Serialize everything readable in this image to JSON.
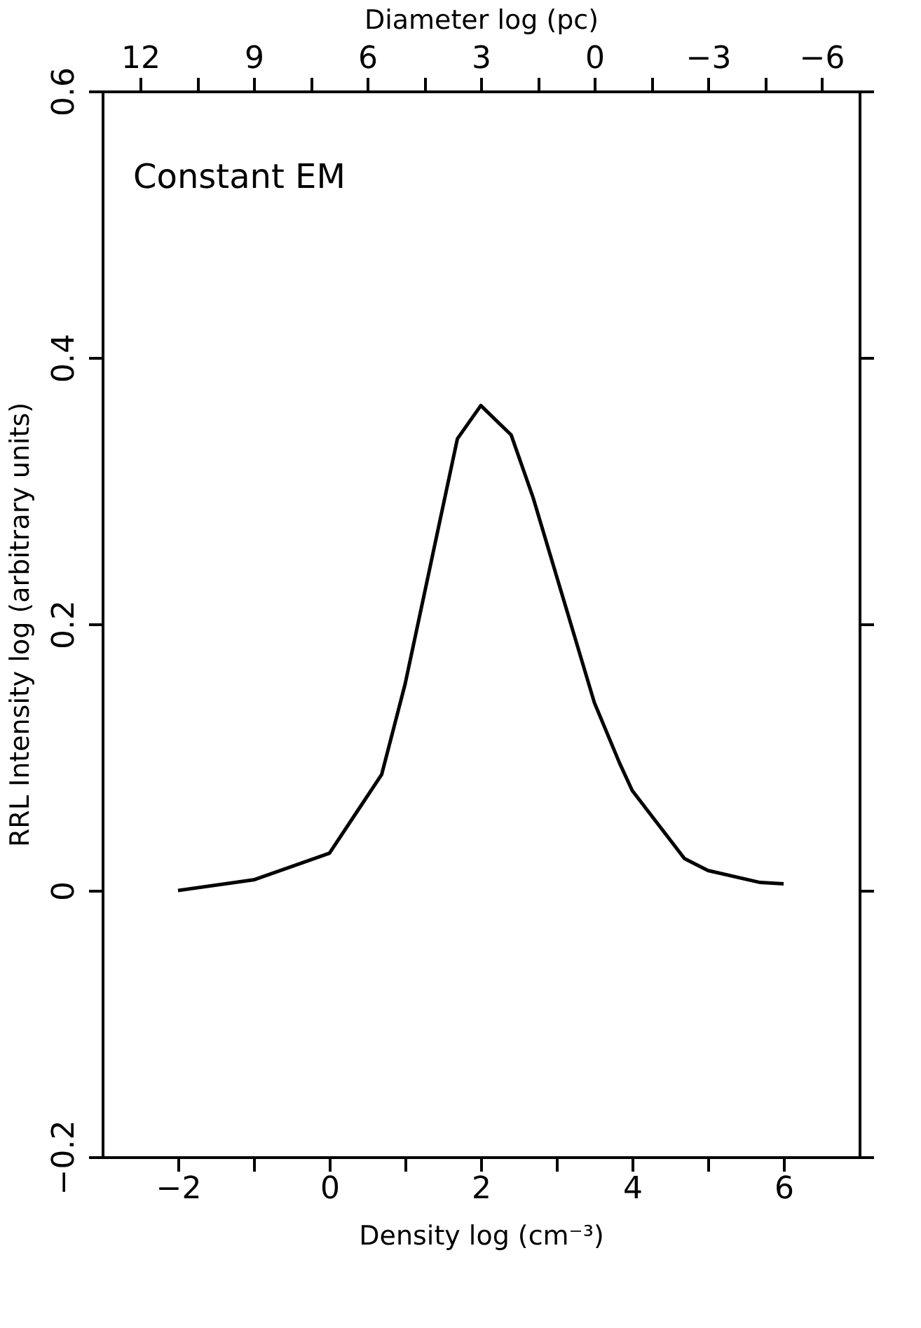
{
  "chart_data": {
    "type": "line",
    "xlabel": "Density log (cm⁻³)",
    "ylabel": "RRL Intensity log (arbitrary units)",
    "x2label": "Diameter log (pc)",
    "annotations": [
      "Constant EM"
    ],
    "series": [
      {
        "color": "#000000",
        "x": [
          -2,
          -1,
          0,
          0.69,
          1.0,
          1.69,
          2.0,
          2.4,
          2.69,
          3.5,
          3.83,
          4.0,
          4.69,
          5.0,
          5.69,
          6.0
        ],
        "values": [
          0.0,
          0.008,
          0.028,
          0.087,
          0.155,
          0.339,
          0.364,
          0.342,
          0.295,
          0.141,
          0.096,
          0.075,
          0.024,
          0.015,
          0.006,
          0.005
        ]
      }
    ],
    "xlim": [
      -3,
      7
    ],
    "xticks": [
      {
        "value": -2,
        "label": "−2"
      },
      {
        "value": -1,
        "label": null
      },
      0,
      {
        "value": 1,
        "label": null
      },
      2,
      {
        "value": 3,
        "label": null
      },
      4,
      {
        "value": 5,
        "label": null
      },
      6
    ],
    "x2lim": [
      13,
      -7
    ],
    "x2ticks": [
      12,
      {
        "value": 10.5,
        "label": null
      },
      9,
      {
        "value": 7.5,
        "label": null
      },
      6,
      {
        "value": 4.5,
        "label": null
      },
      3,
      {
        "value": 1.5,
        "label": null
      },
      0,
      {
        "value": -1.5,
        "label": null
      },
      {
        "value": -3,
        "label": "−3"
      },
      {
        "value": -4.5,
        "label": null
      },
      {
        "value": -6,
        "label": "−6"
      }
    ],
    "ylim": [
      -0.2,
      0.6
    ],
    "yticks": [
      {
        "value": -0.2,
        "label": "−0.2"
      },
      0,
      0.2,
      0.4,
      0.6
    ],
    "grid": false,
    "marker": "none",
    "line_style": "solid"
  }
}
